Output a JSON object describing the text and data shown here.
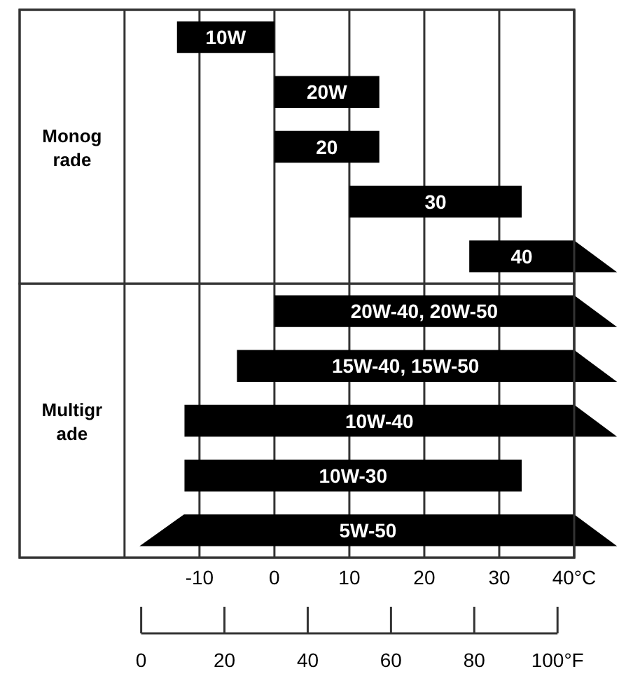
{
  "chart_data": {
    "type": "bar",
    "orientation": "horizontal",
    "categories": [
      "10W",
      "20W",
      "20",
      "30",
      "40",
      "20W-40, 20W-50",
      "15W-40, 15W-50",
      "10W-40",
      "10W-30",
      "5W-50"
    ],
    "base": [
      -13,
      0,
      0,
      10,
      26,
      0,
      -5,
      -12,
      -12,
      -18
    ],
    "values": [
      13,
      14,
      14,
      23,
      14,
      40,
      45,
      52,
      45,
      58
    ],
    "color": "#000000",
    "xlim": [
      -34,
      40
    ],
    "xticks": [
      {
        "value": -20,
        "label": null
      },
      -10,
      0,
      10,
      20,
      30,
      {
        "value": 40,
        "label": "40°C"
      }
    ],
    "x2lim": [
      0,
      100
    ],
    "x2ticks": [
      0,
      20,
      40,
      60,
      80,
      {
        "value": 100,
        "label": "100°F"
      }
    ],
    "grid": "x",
    "annotations": [
      "Monog rade",
      "Multigr ade"
    ]
  }
}
